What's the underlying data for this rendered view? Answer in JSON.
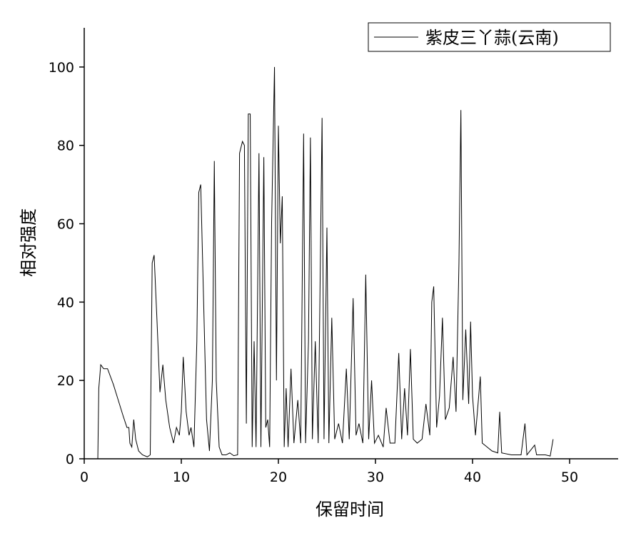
{
  "chart_data": {
    "type": "line",
    "xlabel": "保留时间",
    "ylabel": "相对强度",
    "xlim": [
      0,
      55
    ],
    "ylim": [
      0,
      110
    ],
    "xticks": [
      0,
      10,
      20,
      30,
      40,
      50
    ],
    "yticks": [
      0,
      20,
      40,
      60,
      80,
      100
    ],
    "legend": "upper right",
    "series": [
      {
        "name": "紫皮三丫蒜(云南)",
        "color": "#000000",
        "x": [
          1.4,
          1.5,
          1.7,
          2.0,
          2.4,
          3.0,
          3.5,
          4.0,
          4.4,
          4.6,
          4.7,
          4.9,
          5.1,
          5.3,
          5.6,
          6.0,
          6.5,
          6.8,
          7.0,
          7.2,
          7.5,
          7.8,
          8.1,
          8.4,
          8.8,
          9.2,
          9.5,
          9.8,
          10.0,
          10.2,
          10.5,
          10.8,
          11.0,
          11.3,
          11.6,
          11.8,
          12.0,
          12.3,
          12.6,
          12.9,
          13.2,
          13.4,
          13.6,
          13.9,
          14.2,
          14.6,
          15.0,
          15.4,
          15.8,
          16.0,
          16.3,
          16.5,
          16.7,
          16.9,
          17.1,
          17.3,
          17.5,
          17.7,
          18.0,
          18.2,
          18.5,
          18.7,
          18.9,
          19.1,
          19.3,
          19.6,
          19.8,
          20.0,
          20.2,
          20.4,
          20.6,
          20.8,
          21.0,
          21.3,
          21.6,
          22.0,
          22.3,
          22.6,
          22.8,
          23.1,
          23.3,
          23.5,
          23.8,
          24.1,
          24.5,
          24.7,
          25.0,
          25.2,
          25.5,
          25.8,
          26.2,
          26.6,
          27.0,
          27.3,
          27.7,
          28.0,
          28.3,
          28.7,
          29.0,
          29.3,
          29.6,
          29.9,
          30.3,
          30.8,
          31.1,
          31.5,
          32.0,
          32.4,
          32.7,
          33.0,
          33.3,
          33.6,
          33.9,
          34.3,
          34.8,
          35.2,
          35.6,
          35.8,
          36.0,
          36.3,
          36.6,
          36.9,
          37.2,
          37.6,
          38.0,
          38.3,
          38.6,
          38.8,
          39.0,
          39.3,
          39.6,
          39.8,
          40.0,
          40.3,
          40.8,
          41.0,
          41.5,
          42.0,
          42.6,
          42.8,
          43.0,
          44.0,
          45.0,
          45.4,
          45.6,
          46.4,
          46.6,
          47.5,
          48.0,
          48.3
        ],
        "values": [
          0,
          18,
          24,
          23,
          23,
          19,
          15,
          11,
          8,
          8,
          4,
          3,
          10,
          5,
          2,
          1,
          0.5,
          1,
          50,
          52,
          35,
          17,
          24,
          15,
          8,
          4,
          8,
          6,
          12,
          26,
          12,
          6,
          8,
          3,
          30,
          68,
          70,
          40,
          10,
          2,
          20,
          76,
          20,
          3,
          1,
          1,
          1.5,
          0.8,
          1,
          78,
          81,
          80,
          9,
          88,
          88,
          3,
          30,
          3,
          78,
          3,
          77,
          8,
          10,
          3,
          60,
          100,
          20,
          85,
          55,
          67,
          3,
          18,
          3,
          23,
          4,
          15,
          4,
          83,
          4,
          30,
          82,
          5,
          30,
          4,
          87,
          5,
          59,
          4,
          36,
          5,
          9,
          4,
          23,
          5,
          41,
          6,
          9,
          4,
          47,
          5,
          20,
          4,
          6,
          3,
          13,
          4,
          4,
          27,
          5,
          18,
          6,
          28,
          5,
          4,
          5,
          14,
          6,
          40,
          44,
          8,
          16,
          36,
          10,
          13,
          26,
          12,
          50,
          89,
          15,
          33,
          14,
          35,
          16,
          6,
          21,
          4,
          3,
          2,
          1.5,
          12,
          1.5,
          1,
          1,
          9,
          1,
          3.5,
          1,
          1,
          0.7,
          5
        ]
      }
    ]
  }
}
